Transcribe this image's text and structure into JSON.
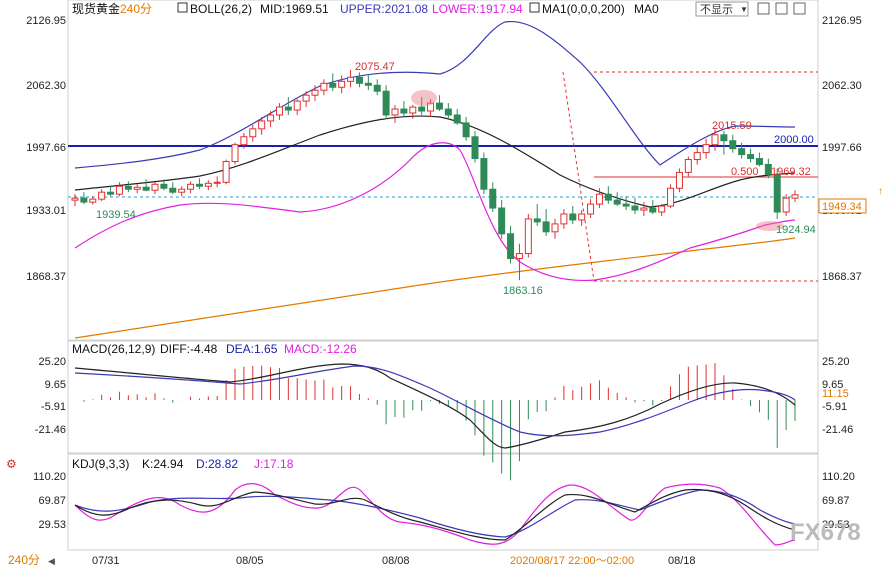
{
  "header": {
    "symbol": "现货黄金",
    "period": "240分",
    "boll_label": "BOLL(26,2)",
    "mid": "MID:1969.51",
    "upper": "UPPER:2021.08",
    "lower": "LOWER:1917.94",
    "ma": "MA1(0,0,0,200)",
    "ma0": "MA0",
    "display_toggle": "不显示"
  },
  "colors": {
    "mid": "#222222",
    "upper": "#3a3ab5",
    "lower": "#e020e0",
    "ma": "#e07a00",
    "up_candle": "#e03030",
    "down_candle": "#2e8b57",
    "hline_blue": "#1a22b0",
    "hline_red": "#e03030",
    "current": "#2aa0c8"
  },
  "price_axis": [
    "2126.95",
    "2062.30",
    "1997.66",
    "1933.01",
    "1868.37"
  ],
  "macd_axis": [
    "25.20",
    "9.65",
    "-5.91",
    "-21.46"
  ],
  "kdj_axis": [
    "110.20",
    "69.87",
    "29.53"
  ],
  "annotations": {
    "high1": "2075.47",
    "low1": "1939.54",
    "low2": "1863.16",
    "high2": "2015.59",
    "level_2000": "2000.00",
    "fib": "0.500",
    "fib_price": "1969.32",
    "low3": "1924.94",
    "current_price": "1949.34",
    "macd_right": "11.15"
  },
  "macd_header": {
    "label": "MACD(26,12,9)",
    "diff": "DIFF:-4.48",
    "dea": "DEA:1.65",
    "macd": "MACD:-12.26"
  },
  "kdj_header": {
    "label": "KDJ(9,3,3)",
    "k": "K:24.94",
    "d": "D:28.82",
    "j": "J:17.18"
  },
  "bottom_bar": {
    "period": "240分",
    "dates": [
      "07/31",
      "08/05",
      "08/08",
      "08/18"
    ],
    "cursor_label": "2020/08/17 22:00～02:00"
  },
  "watermark": "FX678",
  "chart_data": {
    "type": "candlestick",
    "price_ylim": [
      1868.37,
      2126.95
    ],
    "candles": [
      [
        1944,
        1950,
        1938,
        1946
      ],
      [
        1946,
        1952,
        1940,
        1942
      ],
      [
        1942,
        1948,
        1939.54,
        1945
      ],
      [
        1945,
        1955,
        1943,
        1952
      ],
      [
        1952,
        1958,
        1948,
        1950
      ],
      [
        1950,
        1962,
        1948,
        1958
      ],
      [
        1958,
        1963,
        1952,
        1955
      ],
      [
        1955,
        1960,
        1951,
        1957
      ],
      [
        1957,
        1965,
        1953,
        1954
      ],
      [
        1954,
        1962,
        1950,
        1960
      ],
      [
        1960,
        1965,
        1954,
        1956
      ],
      [
        1956,
        1962,
        1950,
        1952
      ],
      [
        1952,
        1958,
        1948,
        1955
      ],
      [
        1955,
        1963,
        1951,
        1960
      ],
      [
        1960,
        1966,
        1955,
        1958
      ],
      [
        1958,
        1964,
        1954,
        1961
      ],
      [
        1961,
        1968,
        1957,
        1962
      ],
      [
        1962,
        1985,
        1960,
        1983
      ],
      [
        1983,
        2002,
        1980,
        2000
      ],
      [
        2000,
        2012,
        1996,
        2008
      ],
      [
        2008,
        2020,
        2003,
        2016
      ],
      [
        2016,
        2028,
        2010,
        2024
      ],
      [
        2024,
        2034,
        2018,
        2030
      ],
      [
        2030,
        2042,
        2025,
        2038
      ],
      [
        2038,
        2048,
        2030,
        2035
      ],
      [
        2035,
        2046,
        2030,
        2044
      ],
      [
        2044,
        2054,
        2038,
        2050
      ],
      [
        2050,
        2060,
        2044,
        2055
      ],
      [
        2055,
        2066,
        2050,
        2062
      ],
      [
        2062,
        2072,
        2054,
        2058
      ],
      [
        2058,
        2070,
        2052,
        2064
      ],
      [
        2064,
        2075.47,
        2058,
        2068
      ],
      [
        2068,
        2073,
        2058,
        2062
      ],
      [
        2062,
        2070,
        2055,
        2060
      ],
      [
        2060,
        2066,
        2050,
        2054
      ],
      [
        2054,
        2060,
        2026,
        2030
      ],
      [
        2030,
        2040,
        2022,
        2036
      ],
      [
        2036,
        2044,
        2028,
        2032
      ],
      [
        2032,
        2040,
        2026,
        2038
      ],
      [
        2038,
        2048,
        2030,
        2034
      ],
      [
        2034,
        2046,
        2028,
        2042
      ],
      [
        2042,
        2050,
        2034,
        2036
      ],
      [
        2036,
        2042,
        2026,
        2030
      ],
      [
        2030,
        2036,
        2020,
        2022
      ],
      [
        2022,
        2028,
        2004,
        2008
      ],
      [
        2008,
        2014,
        1982,
        1986
      ],
      [
        1986,
        1992,
        1950,
        1955
      ],
      [
        1955,
        1962,
        1932,
        1936
      ],
      [
        1936,
        1944,
        1905,
        1910
      ],
      [
        1910,
        1918,
        1880,
        1885
      ],
      [
        1885,
        1900,
        1863.16,
        1890
      ],
      [
        1890,
        1930,
        1886,
        1925
      ],
      [
        1925,
        1940,
        1918,
        1922
      ],
      [
        1922,
        1935,
        1908,
        1912
      ],
      [
        1912,
        1925,
        1905,
        1920
      ],
      [
        1920,
        1935,
        1915,
        1930
      ],
      [
        1930,
        1938,
        1920,
        1924
      ],
      [
        1924,
        1934,
        1918,
        1930
      ],
      [
        1930,
        1945,
        1926,
        1940
      ],
      [
        1940,
        1956,
        1936,
        1950
      ],
      [
        1950,
        1958,
        1940,
        1944
      ],
      [
        1944,
        1952,
        1938,
        1940
      ],
      [
        1940,
        1948,
        1934,
        1938
      ],
      [
        1938,
        1946,
        1930,
        1934
      ],
      [
        1934,
        1942,
        1928,
        1936
      ],
      [
        1936,
        1944,
        1930,
        1932
      ],
      [
        1932,
        1940,
        1928,
        1938
      ],
      [
        1938,
        1960,
        1936,
        1956
      ],
      [
        1956,
        1976,
        1952,
        1972
      ],
      [
        1972,
        1988,
        1968,
        1985
      ],
      [
        1985,
        1998,
        1980,
        1992
      ],
      [
        1992,
        2006,
        1986,
        2000
      ],
      [
        2000,
        2015.59,
        1994,
        2010
      ],
      [
        2010,
        2014,
        1990,
        2004
      ],
      [
        2004,
        2010,
        1992,
        1996
      ],
      [
        1996,
        2002,
        1986,
        1990
      ],
      [
        1990,
        1996,
        1982,
        1986
      ],
      [
        1986,
        1992,
        1978,
        1980
      ],
      [
        1980,
        1986,
        1966,
        1970
      ],
      [
        1970,
        1976,
        1924.94,
        1932
      ],
      [
        1932,
        1950,
        1928,
        1946
      ],
      [
        1946,
        1954,
        1942,
        1949.34
      ]
    ],
    "macd_ylim": [
      -21.46,
      25.2
    ],
    "kdj_ylim": [
      29.53,
      110.2
    ]
  }
}
